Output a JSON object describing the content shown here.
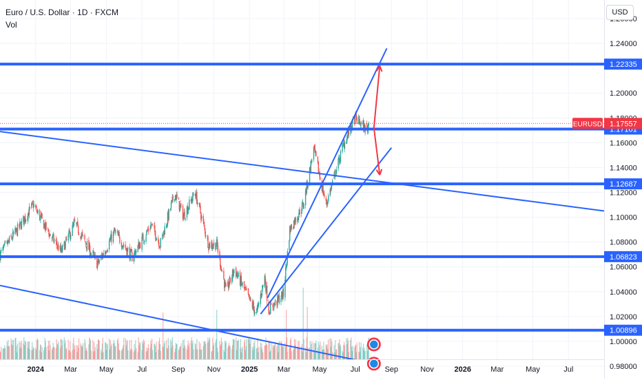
{
  "header": {
    "title": "Euro / U.S. Dollar · 1D · FXCM",
    "subtitle": "Vol"
  },
  "price_axis": {
    "currency_button": "USD"
  },
  "colors": {
    "level_line": "#2962ff",
    "trend_line": "#2962ff",
    "up_candle": "#26a69a",
    "down_candle": "#ef5350",
    "arrow": "#f23645",
    "tag_blue": "#2962ff",
    "tag_red": "#f23645",
    "axis_text": "#131722",
    "grid": "#f0f3fa"
  },
  "chart_data": {
    "type": "candlestick",
    "symbol": "EURUSD",
    "timeframe": "1D",
    "source": "FXCM",
    "x_range": [
      "2023-11-01",
      "2026-08-31"
    ],
    "ylim": [
      0.97,
      1.275
    ],
    "y_ticks": [
      "1.26000",
      "1.24000",
      "1.20000",
      "1.18000",
      "1.16000",
      "1.14000",
      "1.12000",
      "1.10000",
      "1.08000",
      "1.06000",
      "1.04000",
      "1.02000",
      "1.00000",
      "0.98000"
    ],
    "x_ticks": [
      {
        "label": "2024",
        "date": "2024-01-01"
      },
      {
        "label": "Mar",
        "date": "2024-03-01"
      },
      {
        "label": "May",
        "date": "2024-05-01"
      },
      {
        "label": "Jul",
        "date": "2024-07-01"
      },
      {
        "label": "Sep",
        "date": "2024-09-01"
      },
      {
        "label": "Nov",
        "date": "2024-11-01"
      },
      {
        "label": "2025",
        "date": "2025-01-01"
      },
      {
        "label": "Mar",
        "date": "2025-03-01"
      },
      {
        "label": "May",
        "date": "2025-05-01"
      },
      {
        "label": "Jul",
        "date": "2025-07-01"
      },
      {
        "label": "Sep",
        "date": "2025-09-01"
      },
      {
        "label": "Nov",
        "date": "2025-11-01"
      },
      {
        "label": "2026",
        "date": "2026-01-01"
      },
      {
        "label": "Mar",
        "date": "2026-03-01"
      },
      {
        "label": "May",
        "date": "2026-05-01"
      },
      {
        "label": "Jul",
        "date": "2026-07-01"
      }
    ],
    "price_path": [
      [
        "2023-11-01",
        1.07
      ],
      [
        "2023-12-01",
        1.09
      ],
      [
        "2023-12-28",
        1.11
      ],
      [
        "2024-01-20",
        1.09
      ],
      [
        "2024-02-14",
        1.072
      ],
      [
        "2024-03-08",
        1.095
      ],
      [
        "2024-04-16",
        1.062
      ],
      [
        "2024-05-15",
        1.088
      ],
      [
        "2024-06-14",
        1.068
      ],
      [
        "2024-07-17",
        1.094
      ],
      [
        "2024-08-01",
        1.078
      ],
      [
        "2024-08-26",
        1.119
      ],
      [
        "2024-09-10",
        1.101
      ],
      [
        "2024-09-30",
        1.12
      ],
      [
        "2024-10-23",
        1.078
      ],
      [
        "2024-11-06",
        1.078
      ],
      [
        "2024-11-22",
        1.04
      ],
      [
        "2024-12-06",
        1.058
      ],
      [
        "2025-01-13",
        1.022
      ],
      [
        "2025-01-27",
        1.052
      ],
      [
        "2025-02-03",
        1.025
      ],
      [
        "2025-02-28",
        1.038
      ],
      [
        "2025-03-11",
        1.09
      ],
      [
        "2025-04-03",
        1.11
      ],
      [
        "2025-04-21",
        1.155
      ],
      [
        "2025-05-12",
        1.11
      ],
      [
        "2025-06-12",
        1.16
      ],
      [
        "2025-07-01",
        1.18
      ],
      [
        "2025-07-21",
        1.17
      ],
      [
        "2025-07-24",
        1.176
      ]
    ],
    "volume_spikes": [
      {
        "date": "2024-08-06",
        "level": 0.85
      },
      {
        "date": "2024-11-06",
        "level": 0.9
      },
      {
        "date": "2025-03-05",
        "level": 0.9
      },
      {
        "date": "2025-04-03",
        "level": 1.3
      },
      {
        "date": "2025-04-10",
        "level": 0.95
      }
    ],
    "levels": [
      {
        "price": 1.22335,
        "label": "1.22335"
      },
      {
        "price": 1.17101,
        "label": "1.17101"
      },
      {
        "price": 1.12687,
        "label": "1.12687"
      },
      {
        "price": 1.06823,
        "label": "1.06823"
      },
      {
        "price": 1.00896,
        "label": "1.00896"
      }
    ],
    "last_price": {
      "label": "EURUSD",
      "value": "1.17557",
      "price": 1.17557
    },
    "trend_lines": [
      {
        "name": "upper-channel",
        "from": [
          "2023-11-01",
          1.169
        ],
        "to": [
          "2026-08-31",
          1.105
        ]
      },
      {
        "name": "lower-channel",
        "from": [
          "2023-11-01",
          1.045
        ],
        "to": [
          "2025-12-01",
          0.97
        ]
      },
      {
        "name": "steep-uptrend",
        "from": [
          "2025-02-01",
          1.035
        ],
        "to": [
          "2025-08-24",
          1.236
        ]
      },
      {
        "name": "support-uptrend",
        "from": [
          "2025-01-20",
          1.022
        ],
        "to": [
          "2025-09-01",
          1.156
        ]
      }
    ],
    "projection_arrows": [
      {
        "from": [
          "2025-08-02",
          1.172
        ],
        "to": [
          "2025-08-12",
          1.222
        ]
      },
      {
        "from": [
          "2025-08-02",
          1.172
        ],
        "to": [
          "2025-08-12",
          1.134
        ]
      }
    ],
    "indicator_markers": [
      {
        "date": "2025-08-02",
        "price": 0.9975
      },
      {
        "date": "2025-08-02",
        "price": 0.982
      }
    ]
  }
}
